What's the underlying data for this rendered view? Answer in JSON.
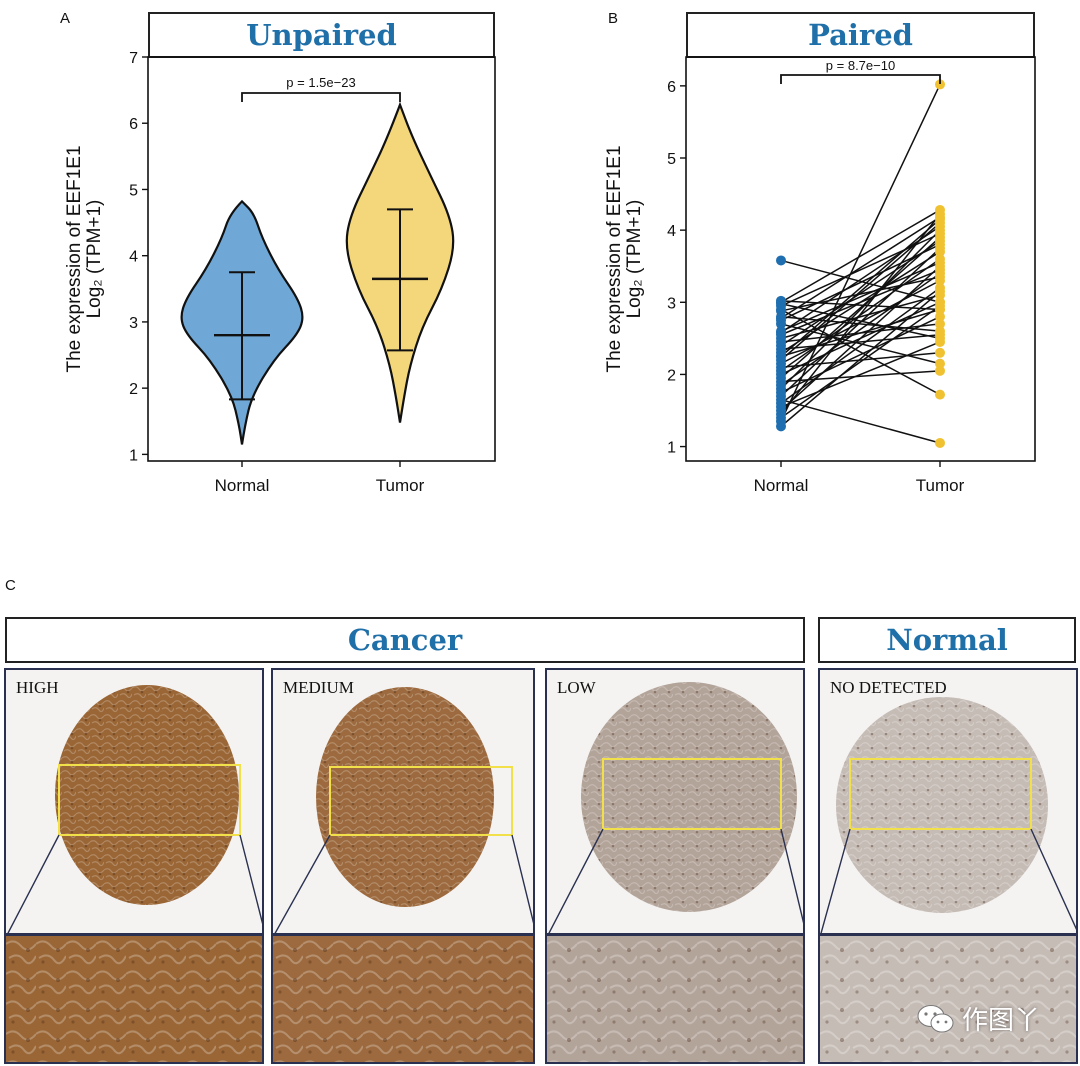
{
  "panels": {
    "a": "A",
    "b": "B",
    "c": "C"
  },
  "colors": {
    "normal": "#6fa8d6",
    "tumor": "#f4d77a",
    "normal_point": "#1f6fb0",
    "tumor_point": "#f0c232",
    "title": "#1f6fa8",
    "high_stain": "#9a6636",
    "medium_stain": "#9c6a3e",
    "low_stain": "#b3a49a",
    "nd_stain": "#c6bcb6",
    "box": "#f1e04a"
  },
  "chart_data": [
    {
      "type": "violin",
      "strip_title": "Unpaired",
      "title": "",
      "ylabel_line1": "The expression of EEF1E1",
      "ylabel_line2": "Log₂ (TPM+1)",
      "xlabel": "",
      "categories": [
        "Normal",
        "Tumor"
      ],
      "ylim": [
        0.9,
        7
      ],
      "yticks": [
        "1",
        "2",
        "3",
        "4",
        "5",
        "6",
        "7"
      ],
      "p_label": "p = 1.5e−23",
      "series": [
        {
          "name": "Normal",
          "min": 1.15,
          "max": 4.82,
          "q_low": 1.83,
          "median": 2.8,
          "q_high": 3.75
        },
        {
          "name": "Tumor",
          "min": 1.48,
          "max": 6.28,
          "q_low": 2.57,
          "median": 3.65,
          "q_high": 4.7
        }
      ]
    },
    {
      "type": "paired-scatter",
      "strip_title": "Paired",
      "title": "",
      "ylabel_line1": "The expression of EEF1E1",
      "ylabel_line2": "Log₂ (TPM+1)",
      "xlabel": "",
      "categories": [
        "Normal",
        "Tumor"
      ],
      "ylim": [
        0.8,
        6.4
      ],
      "yticks": [
        "1",
        "2",
        "3",
        "4",
        "5",
        "6"
      ],
      "p_label": "p = 8.7e−10",
      "pairs": [
        [
          3.58,
          3.0
        ],
        [
          3.02,
          2.9
        ],
        [
          3.0,
          4.28
        ],
        [
          2.98,
          2.5
        ],
        [
          2.95,
          3.95
        ],
        [
          2.9,
          1.72
        ],
        [
          2.88,
          3.35
        ],
        [
          2.8,
          2.6
        ],
        [
          2.78,
          4.18
        ],
        [
          2.7,
          2.15
        ],
        [
          2.6,
          3.55
        ],
        [
          2.58,
          4.05
        ],
        [
          2.5,
          3.1
        ],
        [
          2.45,
          2.7
        ],
        [
          2.4,
          3.85
        ],
        [
          2.35,
          2.55
        ],
        [
          2.3,
          3.7
        ],
        [
          2.25,
          2.9
        ],
        [
          2.2,
          4.1
        ],
        [
          2.15,
          3.3
        ],
        [
          2.1,
          2.3
        ],
        [
          2.05,
          3.6
        ],
        [
          2.0,
          3.0
        ],
        [
          1.95,
          3.9
        ],
        [
          1.9,
          2.05
        ],
        [
          1.85,
          3.4
        ],
        [
          1.8,
          4.0
        ],
        [
          1.75,
          2.8
        ],
        [
          1.7,
          3.75
        ],
        [
          1.65,
          1.05
        ],
        [
          1.6,
          3.2
        ],
        [
          1.55,
          2.45
        ],
        [
          1.5,
          3.5
        ],
        [
          1.45,
          4.22
        ],
        [
          1.4,
          2.95
        ],
        [
          1.35,
          6.02
        ],
        [
          1.28,
          3.15
        ],
        [
          2.55,
          3.45
        ],
        [
          2.25,
          4.15
        ],
        [
          2.75,
          3.8
        ]
      ]
    }
  ],
  "ihc": {
    "cancer_title": "Cancer",
    "normal_title": "Normal",
    "tiles": [
      {
        "label": "HIGH",
        "stain": "#9a6636"
      },
      {
        "label": "MEDIUM",
        "stain": "#9c6a3e"
      },
      {
        "label": "LOW",
        "stain": "#b3a49a"
      },
      {
        "label": "NO DETECTED",
        "stain": "#c6bcb6"
      }
    ]
  },
  "watermark": {
    "text": "作图丫"
  }
}
